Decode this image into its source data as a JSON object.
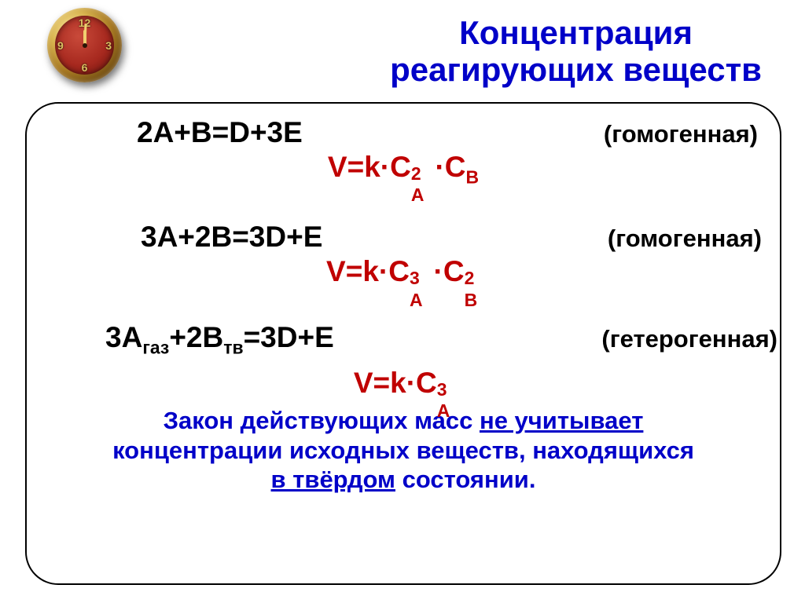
{
  "title_color": "#0000c8",
  "accent_color": "#c00000",
  "law_color": "#0000c8",
  "title_line1": "Концентрация",
  "title_line2": "реагирующих веществ",
  "clock": {
    "n12": "12",
    "n3": "3",
    "n6": "6",
    "n9": "9"
  },
  "examples": [
    {
      "equation": "2A+B=D+3E",
      "note": "(гомогенная)",
      "rate_html": "V=k·C<span class='subsup'><span class='ssup'>2</span><span class='ssub'>A</span></span> ·C<sub>B</sub>"
    },
    {
      "equation": "3A+2B=3D+E",
      "note": "(гомогенная)",
      "rate_html": "V=k·C<span class='subsup'><span class='ssup'>3</span><span class='ssub'>A</span></span> ·C<span class='subsup'><span class='ssup'>2</span><span class='ssub'>B</span></span>"
    },
    {
      "equation_html": "3A<sub>газ</sub>+2B<sub>тв</sub>=3D+E",
      "note": "(гетерогенная)",
      "rate_html": "V=k·C<span class='subsup'><span class='ssup'>3</span><span class='ssub'>A</span></span>"
    }
  ],
  "law_html": "Закон действующих масс <span class='u'>не учитывает</span><br>концентрации исходных веществ, находящихся<br><span class='u'>в твёрдом</span> состоянии."
}
